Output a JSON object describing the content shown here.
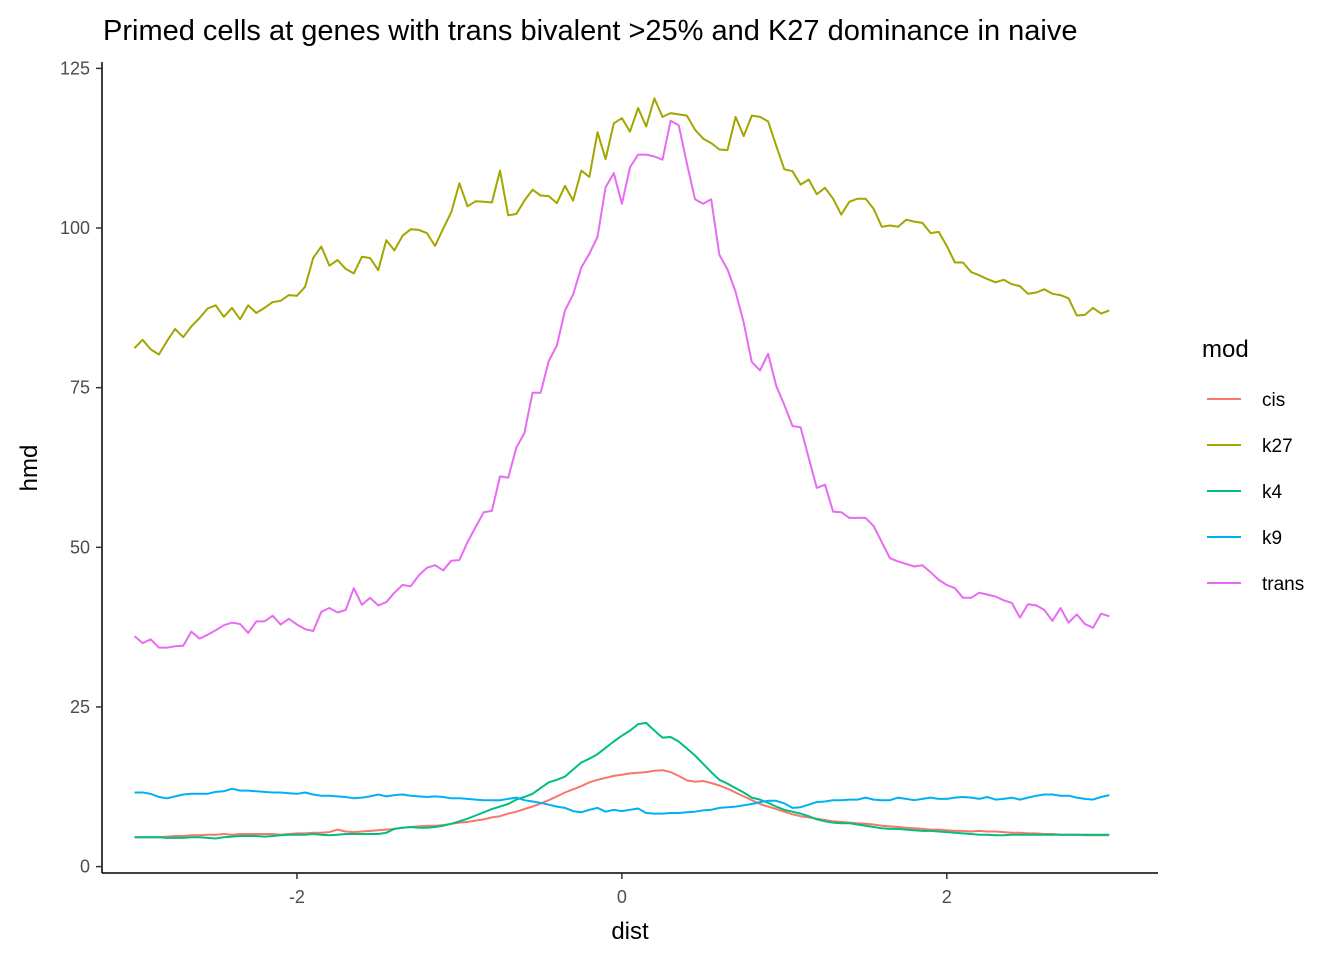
{
  "chart_data": {
    "type": "line",
    "title": "Primed cells at genes with trans bivalent >25% and K27 dominance in naive",
    "xlabel": "dist",
    "ylabel": "hmd",
    "xlim": [
      -3.2,
      3.3
    ],
    "ylim": [
      -1,
      126
    ],
    "x_ticks": [
      -2,
      0,
      2
    ],
    "y_ticks": [
      0,
      25,
      50,
      75,
      100,
      125
    ],
    "x_tick_labels": [
      "-2",
      "0",
      "2"
    ],
    "y_tick_labels": [
      "0",
      "25",
      "50",
      "75",
      "100",
      "125"
    ],
    "grid": false,
    "legend": {
      "title": "mod",
      "position": "right"
    },
    "x": [
      -3.0,
      -2.95,
      -2.9,
      -2.85,
      -2.8,
      -2.75,
      -2.7,
      -2.65,
      -2.6,
      -2.55,
      -2.5,
      -2.45,
      -2.4,
      -2.35,
      -2.3,
      -2.25,
      -2.2,
      -2.15,
      -2.1,
      -2.05,
      -2.0,
      -1.95,
      -1.9,
      -1.85,
      -1.8,
      -1.75,
      -1.7,
      -1.65,
      -1.6,
      -1.55,
      -1.5,
      -1.45,
      -1.4,
      -1.35,
      -1.3,
      -1.25,
      -1.2,
      -1.15,
      -1.1,
      -1.05,
      -1.0,
      -0.95,
      -0.9,
      -0.85,
      -0.8,
      -0.75,
      -0.7,
      -0.65,
      -0.6,
      -0.55,
      -0.5,
      -0.45,
      -0.4,
      -0.35,
      -0.3,
      -0.25,
      -0.2,
      -0.15,
      -0.1,
      -0.05,
      0.0,
      0.05,
      0.1,
      0.15,
      0.2,
      0.25,
      0.3,
      0.35,
      0.4,
      0.45,
      0.5,
      0.55,
      0.6,
      0.65,
      0.7,
      0.75,
      0.8,
      0.85,
      0.9,
      0.95,
      1.0,
      1.05,
      1.1,
      1.15,
      1.2,
      1.25,
      1.3,
      1.35,
      1.4,
      1.45,
      1.5,
      1.55,
      1.6,
      1.65,
      1.7,
      1.75,
      1.8,
      1.85,
      1.9,
      1.95,
      2.0,
      2.05,
      2.1,
      2.15,
      2.2,
      2.25,
      2.3,
      2.35,
      2.4,
      2.45,
      2.5,
      2.55,
      2.6,
      2.65,
      2.7,
      2.75,
      2.8,
      2.85,
      2.9,
      2.95,
      3.0
    ],
    "series": [
      {
        "name": "cis",
        "color": "#F8766D",
        "values": [
          4.6,
          4.6,
          4.6,
          4.6,
          4.7,
          4.8,
          4.8,
          4.9,
          4.9,
          5.0,
          5.0,
          5.1,
          5.0,
          5.1,
          5.1,
          5.1,
          5.1,
          5.1,
          5.0,
          5.1,
          5.2,
          5.2,
          5.3,
          5.3,
          5.4,
          5.8,
          5.5,
          5.4,
          5.5,
          5.6,
          5.7,
          5.8,
          5.9,
          6.1,
          6.2,
          6.3,
          6.4,
          6.4,
          6.5,
          6.7,
          6.9,
          7.0,
          7.2,
          7.4,
          7.7,
          7.9,
          8.3,
          8.6,
          9.0,
          9.4,
          9.9,
          10.4,
          11.0,
          11.6,
          12.1,
          12.6,
          13.2,
          13.6,
          13.9,
          14.2,
          14.4,
          14.6,
          14.7,
          14.8,
          15.0,
          15.1,
          14.8,
          14.2,
          13.5,
          13.3,
          13.4,
          13.1,
          12.7,
          12.2,
          11.6,
          11.0,
          10.4,
          9.8,
          9.4,
          9.0,
          8.6,
          8.2,
          7.9,
          7.7,
          7.5,
          7.3,
          7.1,
          7.0,
          6.9,
          6.8,
          6.7,
          6.6,
          6.4,
          6.3,
          6.2,
          6.1,
          6.0,
          5.9,
          5.8,
          5.8,
          5.7,
          5.6,
          5.6,
          5.5,
          5.6,
          5.5,
          5.5,
          5.4,
          5.3,
          5.3,
          5.2,
          5.2,
          5.1,
          5.1,
          5.0,
          5.0,
          5.0,
          4.9,
          4.9,
          4.9,
          4.9
        ]
      },
      {
        "name": "k27",
        "color": "#A3A500",
        "values": [
          81.2,
          82.5,
          81.0,
          80.2,
          82.3,
          84.2,
          82.9,
          84.6,
          85.9,
          87.4,
          87.9,
          86.1,
          87.5,
          85.7,
          87.9,
          86.7,
          87.5,
          88.4,
          88.6,
          89.5,
          89.4,
          90.8,
          95.3,
          97.1,
          94.1,
          95.0,
          93.6,
          92.9,
          95.5,
          95.3,
          93.4,
          98.1,
          96.5,
          98.8,
          99.8,
          99.7,
          99.2,
          97.2,
          99.9,
          102.5,
          107.0,
          103.4,
          104.2,
          104.1,
          104.0,
          109.0,
          102.0,
          102.2,
          104.3,
          106.0,
          105.1,
          105.0,
          103.9,
          106.6,
          104.3,
          109.0,
          108.0,
          115.0,
          110.8,
          116.4,
          117.2,
          115.1,
          118.8,
          115.9,
          120.3,
          117.4,
          118.0,
          117.8,
          117.6,
          115.4,
          114.0,
          113.3,
          112.3,
          112.2,
          117.4,
          114.4,
          117.6,
          117.4,
          116.7,
          112.9,
          109.2,
          108.9,
          106.8,
          107.6,
          105.3,
          106.3,
          104.6,
          102.1,
          104.1,
          104.6,
          104.6,
          103.0,
          100.2,
          100.4,
          100.2,
          101.3,
          101.0,
          100.8,
          99.2,
          99.4,
          97.2,
          94.6,
          94.6,
          93.1,
          92.6,
          92.0,
          91.5,
          91.9,
          91.2,
          90.9,
          89.7,
          89.9,
          90.4,
          89.7,
          89.5,
          89.0,
          86.3,
          86.4,
          87.5,
          86.6,
          87.1
        ]
      },
      {
        "name": "k4",
        "color": "#00BF7D",
        "values": [
          4.6,
          4.6,
          4.6,
          4.6,
          4.5,
          4.5,
          4.5,
          4.6,
          4.6,
          4.5,
          4.4,
          4.6,
          4.7,
          4.8,
          4.8,
          4.8,
          4.7,
          4.8,
          4.9,
          5.0,
          5.0,
          5.0,
          5.1,
          5.0,
          4.9,
          5.0,
          5.1,
          5.1,
          5.1,
          5.1,
          5.1,
          5.3,
          5.9,
          6.1,
          6.2,
          6.1,
          6.1,
          6.2,
          6.4,
          6.7,
          7.1,
          7.5,
          8.0,
          8.5,
          9.0,
          9.4,
          9.8,
          10.5,
          10.9,
          11.4,
          12.3,
          13.2,
          13.6,
          14.1,
          15.2,
          16.3,
          16.9,
          17.6,
          18.6,
          19.6,
          20.5,
          21.3,
          22.3,
          22.5,
          21.3,
          20.2,
          20.3,
          19.6,
          18.5,
          17.4,
          16.1,
          14.8,
          13.6,
          13.0,
          12.3,
          11.6,
          10.8,
          10.5,
          10.0,
          9.4,
          8.9,
          8.6,
          8.3,
          7.9,
          7.4,
          7.1,
          6.9,
          6.8,
          6.8,
          6.6,
          6.4,
          6.2,
          6.0,
          5.9,
          5.9,
          5.8,
          5.7,
          5.6,
          5.6,
          5.5,
          5.4,
          5.3,
          5.2,
          5.1,
          5.0,
          5.0,
          4.9,
          4.9,
          5.0,
          5.0,
          5.0,
          5.0,
          5.0,
          5.0,
          5.0,
          5.0,
          5.0,
          5.0,
          5.0,
          5.0,
          5.0
        ]
      },
      {
        "name": "k9",
        "color": "#00B0F6",
        "values": [
          11.6,
          11.6,
          11.4,
          10.9,
          10.7,
          11.0,
          11.3,
          11.4,
          11.4,
          11.4,
          11.7,
          11.8,
          12.2,
          11.9,
          11.9,
          11.8,
          11.7,
          11.6,
          11.6,
          11.5,
          11.4,
          11.6,
          11.3,
          11.1,
          11.1,
          11.0,
          10.9,
          10.7,
          10.8,
          11.0,
          11.3,
          11.0,
          11.2,
          11.3,
          11.1,
          11.0,
          10.9,
          11.0,
          10.9,
          10.7,
          10.7,
          10.6,
          10.5,
          10.4,
          10.4,
          10.4,
          10.6,
          10.8,
          10.4,
          10.2,
          10.0,
          9.7,
          9.4,
          9.2,
          8.7,
          8.5,
          8.9,
          9.2,
          8.6,
          8.9,
          8.7,
          8.9,
          9.1,
          8.4,
          8.3,
          8.3,
          8.4,
          8.4,
          8.5,
          8.6,
          8.8,
          8.9,
          9.2,
          9.3,
          9.4,
          9.6,
          9.8,
          10.1,
          10.3,
          10.3,
          9.9,
          9.2,
          9.3,
          9.7,
          10.1,
          10.2,
          10.4,
          10.4,
          10.5,
          10.5,
          10.8,
          10.5,
          10.4,
          10.4,
          10.8,
          10.6,
          10.4,
          10.6,
          10.8,
          10.6,
          10.6,
          10.8,
          10.9,
          10.8,
          10.6,
          10.9,
          10.5,
          10.6,
          10.8,
          10.5,
          10.8,
          11.1,
          11.3,
          11.3,
          11.1,
          11.1,
          10.8,
          10.6,
          10.5,
          10.9,
          11.2
        ]
      },
      {
        "name": "trans",
        "color": "#E76BF3",
        "values": [
          36.1,
          35.0,
          35.6,
          34.3,
          34.3,
          34.5,
          34.6,
          36.8,
          35.7,
          36.3,
          37.0,
          37.8,
          38.2,
          38.0,
          36.6,
          38.4,
          38.4,
          39.3,
          37.9,
          38.8,
          37.9,
          37.2,
          36.9,
          39.9,
          40.5,
          39.8,
          40.2,
          43.6,
          41.0,
          42.1,
          40.9,
          41.4,
          42.9,
          44.1,
          43.9,
          45.6,
          46.8,
          47.2,
          46.4,
          47.9,
          48.0,
          50.8,
          53.2,
          55.5,
          55.7,
          61.1,
          60.9,
          65.6,
          67.9,
          74.2,
          74.2,
          79.2,
          81.6,
          87.1,
          89.6,
          93.8,
          96.0,
          98.6,
          106.4,
          108.6,
          103.8,
          109.5,
          111.5,
          111.5,
          111.2,
          110.7,
          116.8,
          116.1,
          110.1,
          104.5,
          103.8,
          104.5,
          95.8,
          93.5,
          90.0,
          85.2,
          79.0,
          77.7,
          80.3,
          75.3,
          72.3,
          69.0,
          68.8,
          64.0,
          59.3,
          59.8,
          55.6,
          55.5,
          54.6,
          54.6,
          54.6,
          53.3,
          50.8,
          48.3,
          47.8,
          47.4,
          47.0,
          47.2,
          46.1,
          44.9,
          44.1,
          43.6,
          42.1,
          42.1,
          42.9,
          42.6,
          42.3,
          41.7,
          41.3,
          39.0,
          41.1,
          40.9,
          40.2,
          38.5,
          40.5,
          38.2,
          39.5,
          38.0,
          37.4,
          39.6,
          39.2
        ]
      }
    ]
  }
}
